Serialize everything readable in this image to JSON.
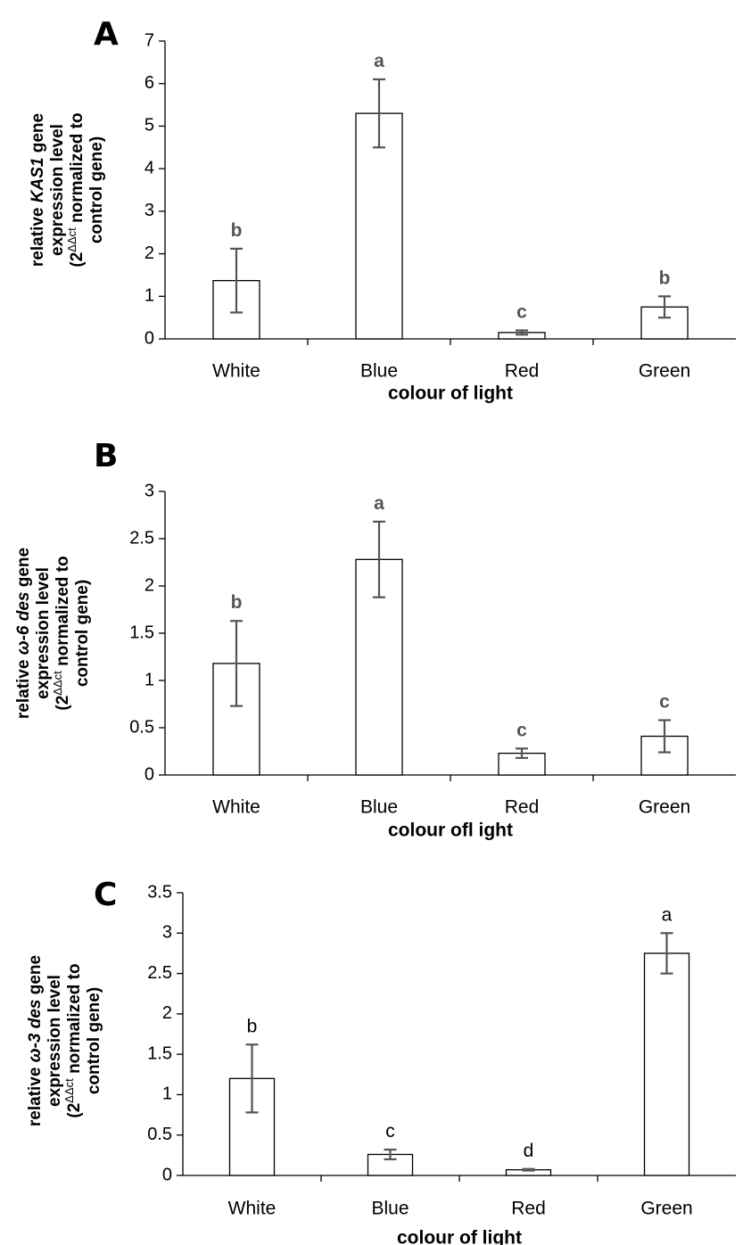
{
  "chart_data": [
    {
      "type": "bar",
      "panel": "A",
      "categories": [
        "White",
        "Blue",
        "Red",
        "Green"
      ],
      "values": [
        1.37,
        5.3,
        0.15,
        0.75
      ],
      "errors": [
        0.75,
        0.8,
        0.05,
        0.25
      ],
      "significance": [
        "b",
        "a",
        "c",
        "b"
      ],
      "ylabel_lines": [
        [
          {
            "t": "relative "
          },
          {
            "t": "KAS1",
            "i": true
          },
          {
            "t": " gene"
          }
        ],
        [
          {
            "t": "expression level"
          }
        ],
        [
          {
            "t": "(2"
          },
          {
            "t": "ΔΔct",
            "sup": true
          },
          {
            "t": "  normalized to"
          }
        ],
        [
          {
            "t": "control gene)"
          }
        ]
      ],
      "xlabel": "colour of light",
      "ylim": [
        0,
        7
      ],
      "yticks": [
        0,
        1,
        2,
        3,
        4,
        5,
        6,
        7
      ],
      "ytick_labels": [
        "0",
        "1",
        "2",
        "3",
        "4",
        "5",
        "6",
        "7"
      ],
      "sig_style": "bold"
    },
    {
      "type": "bar",
      "panel": "B",
      "categories": [
        "White",
        "Blue",
        "Red",
        "Green"
      ],
      "values": [
        1.18,
        2.28,
        0.23,
        0.41
      ],
      "errors": [
        0.45,
        0.4,
        0.05,
        0.17
      ],
      "significance": [
        "b",
        "a",
        "c",
        "c"
      ],
      "ylabel_lines": [
        [
          {
            "t": "relative "
          },
          {
            "t": "ω-6 des",
            "i": true
          },
          {
            "t": " gene"
          }
        ],
        [
          {
            "t": "expression level"
          }
        ],
        [
          {
            "t": "(2"
          },
          {
            "t": "ΔΔct",
            "sup": true
          },
          {
            "t": "  normalized to"
          }
        ],
        [
          {
            "t": "control gene)"
          }
        ]
      ],
      "xlabel": "colour ofl ight",
      "ylim": [
        0,
        3
      ],
      "yticks": [
        0,
        0.5,
        1,
        1.5,
        2,
        2.5,
        3
      ],
      "ytick_labels": [
        "0",
        "0.5",
        "1",
        "1.5",
        "2",
        "2.5",
        "3"
      ],
      "sig_style": "bold"
    },
    {
      "type": "bar",
      "panel": "C",
      "categories": [
        "White",
        "Blue",
        "Red",
        "Green"
      ],
      "values": [
        1.2,
        0.26,
        0.07,
        2.75
      ],
      "errors": [
        0.42,
        0.06,
        0.01,
        0.25
      ],
      "significance": [
        "b",
        "c",
        "d",
        "a"
      ],
      "ylabel_lines": [
        [
          {
            "t": "relative "
          },
          {
            "t": "ω-3 des",
            "i": true
          },
          {
            "t": " gene"
          }
        ],
        [
          {
            "t": "expression level"
          }
        ],
        [
          {
            "t": "(2"
          },
          {
            "t": "ΔΔct",
            "sup": true
          },
          {
            "t": "  normalized to"
          }
        ],
        [
          {
            "t": "control gene)"
          }
        ]
      ],
      "xlabel": "colour of light",
      "ylim": [
        0,
        3.5
      ],
      "yticks": [
        0,
        0.5,
        1,
        1.5,
        2,
        2.5,
        3,
        3.5
      ],
      "ytick_labels": [
        "0",
        "0.5",
        "1",
        "1.5",
        "2",
        "2.5",
        "3",
        "3.5"
      ],
      "sig_style": "plain"
    }
  ]
}
